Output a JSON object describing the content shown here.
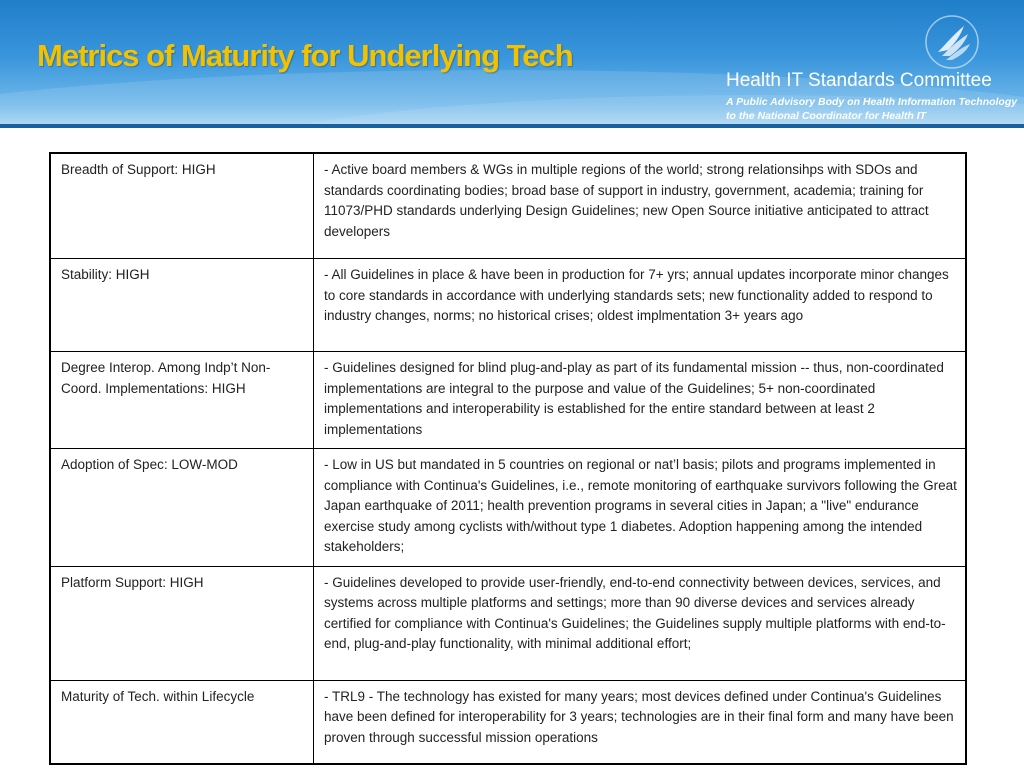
{
  "slide": {
    "title": "Metrics of Maturity for Underlying Tech",
    "committee": {
      "name": "Health IT Standards Committee",
      "tagline_line1": "A Public Advisory Body on Health Information Technology",
      "tagline_line2": "to the National Coordinator for Health IT",
      "logo_icon": "hhs-eagle-icon"
    },
    "colors": {
      "title": "#f2c200",
      "header_blue": "#2a88d3"
    }
  },
  "table": {
    "rows": [
      {
        "metric": "Breadth of Support: HIGH",
        "description": "- Active board members & WGs in multiple regions of the world; strong relationsihps with SDOs and standards coordinating bodies; broad base of support in industry, government, academia; training for 11073/PHD standards underlying Design Guidelines; new Open Source initiative anticipated to attract developers"
      },
      {
        "metric": "Stability: HIGH",
        "description": "- All Guidelines in place & have been in production for 7+ yrs; annual updates incorporate minor changes to core standards in accordance with underlying standards sets; new functionality added to respond to industry changes, norms; no historical crises; oldest implmentation 3+ years ago"
      },
      {
        "metric": "Degree Interop. Among Indp’t Non-Coord. Implementations: HIGH",
        "description": "- Guidelines designed for blind plug-and-play as part of its fundamental mission -- thus, non-coordinated implementations are integral to the purpose and value of the Guidelines; 5+ non-coordinated implementations and interoperability is established for the entire standard between at least 2 implementations"
      },
      {
        "metric": "Adoption of Spec: LOW-MOD",
        "description": "- Low in US but mandated in 5 countries on regional or nat’l basis; pilots and programs implemented in compliance with Continua's Guidelines, i.e., remote monitoring of earthquake survivors following the Great Japan earthquake of 2011; health prevention programs in several cities in Japan; a \"live\" endurance exercise study among cyclists with/without type 1 diabetes. Adoption happening among the intended stakeholders;"
      },
      {
        "metric": "Platform Support: HIGH",
        "description": "- Guidelines developed to provide user-friendly, end-to-end connectivity between devices, services, and systems across multiple platforms and settings; more than 90 diverse devices and services already certified for compliance with Continua's Guidelines; the Guidelines supply multiple platforms with end-to-end, plug-and-play functionality, with minimal additional effort;"
      },
      {
        "metric": "Maturity of Tech. within Lifecycle",
        "description": "- TRL9 - The technology has existed for many years; most devices defined under Continua's Guidelines have been defined for interoperability for 3 years; technologies are in their final form and many have been proven through successful mission operations"
      }
    ]
  }
}
